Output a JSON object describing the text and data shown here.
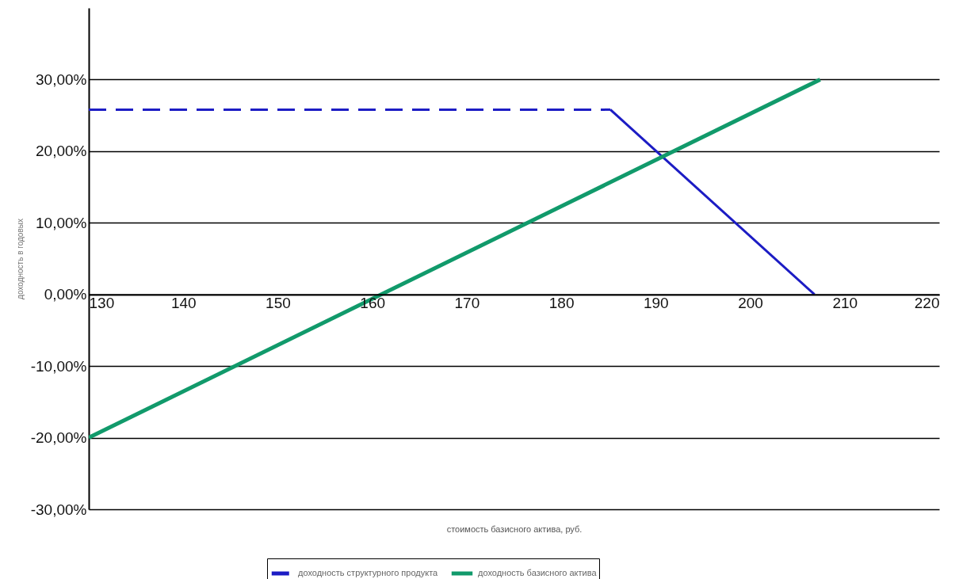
{
  "chart_data": {
    "type": "line",
    "xlabel": "стоимость базисного актива, руб.",
    "ylabel": "доходность в годовых",
    "xlim": [
      130,
      220
    ],
    "xticks": [
      130,
      140,
      150,
      160,
      170,
      180,
      190,
      200,
      210,
      220
    ],
    "ylim": [
      -30,
      40
    ],
    "yticks": [
      {
        "value": 30,
        "label": "30,00%"
      },
      {
        "value": 20,
        "label": "20,00%"
      },
      {
        "value": 10,
        "label": "10,00%"
      },
      {
        "value": 0,
        "label": "0,00%"
      },
      {
        "value": -10,
        "label": "-10,00%"
      },
      {
        "value": -20,
        "label": "-20,00%"
      },
      {
        "value": -30,
        "label": "-30,00%"
      }
    ],
    "grid": "y",
    "legend": "bottom",
    "marker": "none",
    "series": [
      {
        "name": "доходность структурного продукта",
        "color": "#1c1cc4",
        "line_style": "dashed",
        "x": [
          130,
          185.2
        ],
        "values": [
          25.8,
          25.8
        ]
      },
      {
        "color": "#1c1cc4",
        "line_style": "solid",
        "x": [
          185.2,
          206.8
        ],
        "values": [
          25.8,
          0
        ]
      },
      {
        "name": "доходность базисного актива",
        "color": "#119a6b",
        "line_style": "solid",
        "x": [
          130,
          207.4
        ],
        "values": [
          -20,
          30
        ]
      }
    ]
  }
}
